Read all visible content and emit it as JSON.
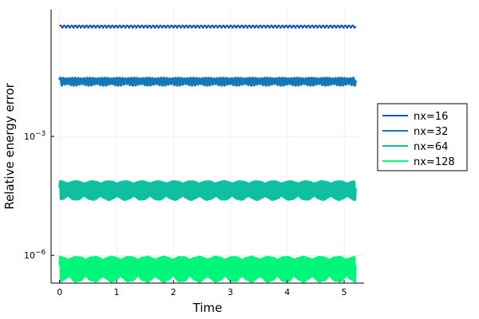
{
  "chart_data": {
    "type": "line",
    "title": "",
    "xlabel": "Time",
    "ylabel": "Relative energy error",
    "y_scale": "log10",
    "xlim": [
      -0.15,
      5.35
    ],
    "ylim_log10": [
      -6.7,
      0.2
    ],
    "x_ticks": [
      0,
      1,
      2,
      3,
      4,
      5
    ],
    "x_tick_labels": [
      "0",
      "1",
      "2",
      "3",
      "4",
      "5"
    ],
    "y_ticks_log10": [
      -3,
      -6
    ],
    "y_tick_labels": [
      {
        "base": "10",
        "exp": "−3"
      },
      {
        "base": "10",
        "exp": "−6"
      }
    ],
    "grid": true,
    "legend_position": "outer-right",
    "x_range": [
      0,
      5.2
    ],
    "series": [
      {
        "name": "nx=16",
        "color": "#1550c0",
        "log10_center": -0.22,
        "log10_amp_low": 0.04,
        "log10_amp_high": 0.02,
        "fast_cycles": 80,
        "beat_cycles": 0,
        "band_width": 2
      },
      {
        "name": "nx=32",
        "color": "#1377b8",
        "log10_center": -1.58,
        "log10_amp_low": 0.14,
        "log10_amp_high": 0.06,
        "fast_cycles": 100,
        "beat_cycles": 20,
        "band_width": 3
      },
      {
        "name": "nx=64",
        "color": "#0fbfa0",
        "log10_center": -4.3,
        "log10_amp_low": 0.3,
        "log10_amp_high": 0.17,
        "fast_cycles": 160,
        "beat_cycles": 18,
        "band_width": 3
      },
      {
        "name": "nx=128",
        "color": "#00f57a",
        "log10_center": -6.25,
        "log10_amp_low": 0.42,
        "log10_amp_high": 0.22,
        "fast_cycles": 180,
        "beat_cycles": 17,
        "band_width": 2.5
      }
    ]
  }
}
